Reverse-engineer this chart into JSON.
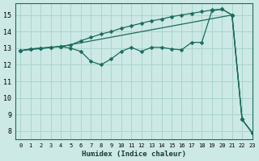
{
  "xlabel": "Humidex (Indice chaleur)",
  "bg_color": "#cce9e5",
  "grid_color": "#aad4ce",
  "line_color": "#1a6b5e",
  "xlim": [
    -0.5,
    23
  ],
  "ylim": [
    7.5,
    15.7
  ],
  "xticks": [
    0,
    1,
    2,
    3,
    4,
    5,
    6,
    7,
    8,
    9,
    10,
    11,
    12,
    13,
    14,
    15,
    16,
    17,
    18,
    19,
    20,
    21,
    22,
    23
  ],
  "yticks": [
    8,
    9,
    10,
    11,
    12,
    13,
    14,
    15
  ],
  "line_upper_x": [
    0,
    1,
    2,
    3,
    4,
    5,
    6,
    7,
    8,
    9,
    10,
    11,
    12,
    13,
    14,
    15,
    16,
    17,
    18,
    19,
    20,
    21,
    22,
    23
  ],
  "line_upper_y": [
    12.85,
    12.95,
    13.0,
    13.05,
    13.1,
    13.2,
    13.45,
    13.65,
    13.85,
    14.0,
    14.2,
    14.35,
    14.5,
    14.65,
    14.75,
    14.9,
    15.0,
    15.1,
    15.2,
    15.3,
    15.35,
    15.0,
    8.7,
    7.9
  ],
  "line_mid_x": [
    0,
    1,
    2,
    3,
    4,
    5,
    6,
    7,
    8,
    9,
    10,
    11,
    12,
    13,
    14,
    15,
    16,
    17,
    18,
    19,
    20,
    21,
    22,
    23
  ],
  "line_mid_y": [
    12.85,
    12.95,
    13.0,
    13.05,
    13.1,
    13.0,
    12.8,
    12.2,
    12.0,
    12.35,
    12.8,
    13.05,
    12.8,
    13.05,
    13.05,
    12.95,
    12.9,
    13.35,
    13.35,
    15.25,
    15.35,
    15.0,
    8.7,
    7.9
  ],
  "line_lower_x": [
    0,
    4,
    21,
    22,
    23
  ],
  "line_lower_y": [
    12.85,
    13.1,
    15.0,
    8.7,
    7.9
  ],
  "marker_size": 2.5
}
